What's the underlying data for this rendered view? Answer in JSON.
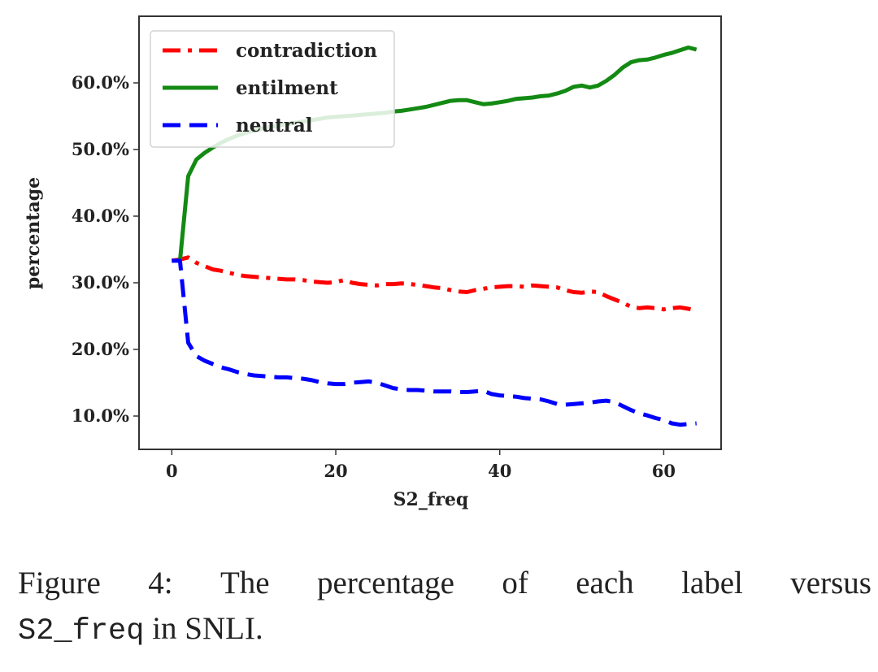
{
  "chart_data": {
    "type": "line",
    "title": "",
    "xlabel": "S2_freq",
    "ylabel": "percentage",
    "xlim": [
      -4,
      67
    ],
    "ylim": [
      5,
      70
    ],
    "x_ticks": [
      0,
      20,
      40,
      60
    ],
    "x_tick_labels": [
      "0",
      "20",
      "40",
      "60"
    ],
    "y_ticks": [
      10,
      20,
      30,
      40,
      50,
      60
    ],
    "y_tick_labels": [
      "10.0%",
      "20.0%",
      "30.0%",
      "40.0%",
      "50.0%",
      "60.0%"
    ],
    "grid": false,
    "legend_position": "top-left",
    "series": [
      {
        "name": "contradiction",
        "color": "#ff0000",
        "style": "dashdot",
        "x": [
          0,
          1,
          2,
          3,
          4,
          5,
          6,
          7,
          8,
          9,
          10,
          11,
          12,
          13,
          14,
          15,
          16,
          17,
          18,
          19,
          20,
          21,
          22,
          23,
          24,
          25,
          26,
          27,
          28,
          29,
          30,
          31,
          32,
          33,
          34,
          35,
          36,
          37,
          38,
          39,
          40,
          41,
          42,
          43,
          44,
          45,
          46,
          47,
          48,
          49,
          50,
          51,
          52,
          53,
          54,
          55,
          56,
          57,
          58,
          59,
          60,
          61,
          62,
          63,
          64
        ],
        "values": [
          33.3,
          33.5,
          33.8,
          33.0,
          32.5,
          32.0,
          31.8,
          31.5,
          31.2,
          31.0,
          30.9,
          30.8,
          30.7,
          30.6,
          30.5,
          30.5,
          30.4,
          30.2,
          30.1,
          30.0,
          30.1,
          30.4,
          30.0,
          29.8,
          29.7,
          29.6,
          29.8,
          29.8,
          29.9,
          29.8,
          29.7,
          29.5,
          29.3,
          29.2,
          28.9,
          28.7,
          28.6,
          28.9,
          29.1,
          29.3,
          29.4,
          29.5,
          29.5,
          29.4,
          29.6,
          29.5,
          29.4,
          29.3,
          28.9,
          28.6,
          28.5,
          28.7,
          28.6,
          28.0,
          27.5,
          27.0,
          26.4,
          26.2,
          26.3,
          26.2,
          26.0,
          26.2,
          26.3,
          26.1,
          25.8
        ]
      },
      {
        "name": "entilment",
        "color": "#138a13",
        "style": "solid",
        "x": [
          1,
          2,
          3,
          4,
          5,
          6,
          7,
          8,
          9,
          10,
          11,
          12,
          13,
          14,
          15,
          16,
          17,
          18,
          19,
          20,
          21,
          22,
          23,
          24,
          25,
          26,
          27,
          28,
          29,
          30,
          31,
          32,
          33,
          34,
          35,
          36,
          37,
          38,
          39,
          40,
          41,
          42,
          43,
          44,
          45,
          46,
          47,
          48,
          49,
          50,
          51,
          52,
          53,
          54,
          55,
          56,
          57,
          58,
          59,
          60,
          61,
          62,
          63,
          64
        ],
        "values": [
          33.3,
          46.0,
          48.5,
          49.5,
          50.3,
          51.0,
          51.6,
          52.1,
          52.5,
          52.8,
          53.1,
          53.4,
          53.6,
          53.8,
          54.0,
          54.2,
          54.4,
          54.6,
          54.8,
          54.9,
          55.0,
          55.1,
          55.2,
          55.3,
          55.4,
          55.5,
          55.7,
          55.8,
          56.0,
          56.2,
          56.4,
          56.7,
          57.0,
          57.3,
          57.4,
          57.4,
          57.1,
          56.8,
          56.9,
          57.1,
          57.3,
          57.6,
          57.7,
          57.8,
          58.0,
          58.1,
          58.4,
          58.8,
          59.4,
          59.6,
          59.3,
          59.6,
          60.3,
          61.2,
          62.3,
          63.1,
          63.4,
          63.5,
          63.8,
          64.2,
          64.5,
          64.9,
          65.3,
          65.0
        ]
      },
      {
        "name": "neutral",
        "color": "#0000ff",
        "style": "dashed",
        "x": [
          0,
          1,
          2,
          3,
          4,
          5,
          6,
          7,
          8,
          9,
          10,
          11,
          12,
          13,
          14,
          15,
          16,
          17,
          18,
          19,
          20,
          21,
          22,
          23,
          24,
          25,
          26,
          27,
          28,
          29,
          30,
          31,
          32,
          33,
          34,
          35,
          36,
          37,
          38,
          39,
          40,
          41,
          42,
          43,
          44,
          45,
          46,
          47,
          48,
          49,
          50,
          51,
          52,
          53,
          54,
          55,
          56,
          57,
          58,
          59,
          60,
          61,
          62,
          63,
          64
        ],
        "values": [
          33.3,
          33.3,
          21.0,
          19.0,
          18.3,
          17.8,
          17.3,
          17.0,
          16.6,
          16.3,
          16.1,
          16.0,
          15.9,
          15.8,
          15.8,
          15.7,
          15.6,
          15.4,
          15.1,
          14.9,
          14.8,
          14.8,
          15.0,
          15.1,
          15.2,
          15.0,
          14.6,
          14.2,
          14.0,
          13.9,
          13.9,
          13.8,
          13.7,
          13.7,
          13.7,
          13.6,
          13.6,
          13.7,
          13.8,
          13.3,
          13.1,
          13.0,
          12.9,
          12.7,
          12.6,
          12.5,
          12.2,
          11.8,
          11.7,
          11.8,
          11.9,
          12.0,
          12.2,
          12.3,
          12.1,
          11.5,
          10.9,
          10.4,
          10.1,
          9.7,
          9.4,
          8.9,
          8.7,
          8.8,
          8.9
        ]
      }
    ]
  },
  "caption": {
    "line1": [
      "Figure",
      "4:",
      "The",
      "percentage",
      "of",
      "each",
      "label",
      "versus"
    ],
    "code": "S2_freq",
    "rest": " in SNLI."
  }
}
